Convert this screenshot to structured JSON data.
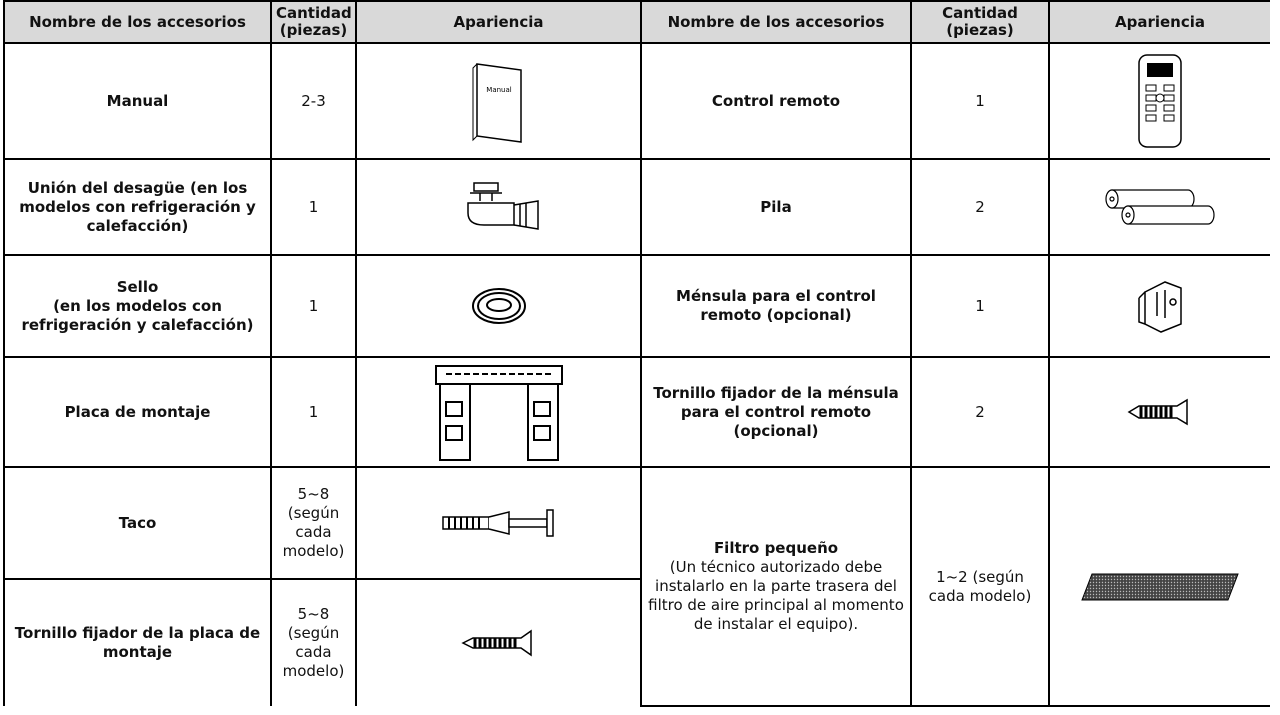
{
  "table": {
    "header": [
      "Nombre de los accesorios",
      "Cantidad (piezas)",
      "Apariencia",
      "Nombre de los accesorios",
      "Cantidad (piezas)",
      "Apariencia"
    ],
    "left": [
      {
        "name": "Manual",
        "quantity": "2-3"
      },
      {
        "name": "Unión del desagüe (en los modelos con refrigeración y calefacción)",
        "quantity": "1"
      },
      {
        "name": "Sello\n(en los modelos con refrigeración y calefacción)",
        "quantity": "1"
      },
      {
        "name": "Placa de montaje",
        "quantity": "1"
      },
      {
        "name": "Taco",
        "quantity": "5~8\n(según cada modelo)"
      },
      {
        "name": "Tornillo fijador de la placa de montaje",
        "quantity": "5~8\n(según cada modelo)"
      }
    ],
    "right": [
      {
        "name": "Control remoto",
        "quantity": "1"
      },
      {
        "name": "Pila",
        "quantity": "2"
      },
      {
        "name": "Ménsula para el control remoto (opcional)",
        "quantity": "1"
      },
      {
        "name": "Tornillo fijador de la ménsula para el control remoto (opcional)",
        "quantity": "2"
      },
      {
        "name": "Filtro pequeño",
        "note": "(Un técnico autorizado debe instalarlo en la parte trasera del filtro de aire principal al momento de instalar el equipo).",
        "quantity": "1~2 (según cada modelo)"
      }
    ],
    "manual_icon_label": "Manual"
  }
}
